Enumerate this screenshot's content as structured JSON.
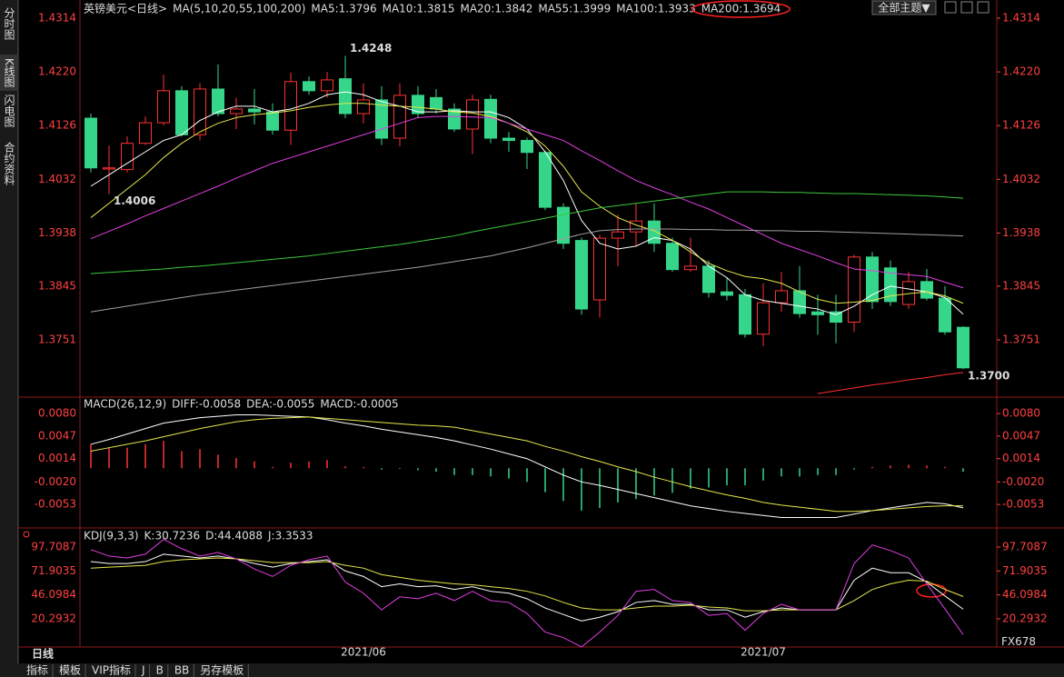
{
  "app": {
    "sidebar": [
      "分时图",
      "K线图",
      "闪电图",
      "合约资料"
    ],
    "theme_button": "全部主题▼",
    "period": "日线",
    "tabs": [
      "指标",
      "模板",
      "VIP指标",
      "J",
      "B",
      "BB",
      "另存模板"
    ],
    "watermark": "FX678"
  },
  "chart_data": [
    {
      "type": "candlestick",
      "title": "英镑美元<日线>",
      "indicator": "MA(5,10,20,55,100,200)",
      "categories": [
        null,
        null,
        null,
        null,
        null,
        null,
        null,
        null,
        null,
        null,
        null,
        null,
        null,
        null,
        null,
        "2021/06",
        null,
        null,
        null,
        null,
        null,
        null,
        null,
        null,
        null,
        null,
        null,
        null,
        null,
        null,
        null,
        null,
        null,
        null,
        null,
        null,
        null,
        "2021/07",
        null,
        null,
        null,
        null,
        null,
        null,
        null,
        null,
        null,
        null,
        null
      ],
      "up_color": "#ff3232",
      "down_color": "#36d68a",
      "open": [
        1.4139,
        1.405,
        1.4049,
        1.4095,
        1.4131,
        1.4187,
        1.411,
        1.419,
        1.4147,
        1.4155,
        1.415,
        1.4118,
        1.4203,
        1.4187,
        1.4208,
        1.4147,
        1.4171,
        1.4104,
        1.4179,
        1.4175,
        1.4155,
        1.412,
        1.4172,
        1.4104,
        1.41,
        1.4079,
        1.3983,
        1.3925,
        1.3821,
        1.3929,
        1.394,
        1.3959,
        1.392,
        1.3874,
        1.388,
        1.3835,
        1.383,
        1.3761,
        1.3816,
        1.3837,
        1.38,
        1.38,
        1.3782,
        1.3896,
        1.3877,
        1.3813,
        1.3853,
        1.3824,
        1.3773
      ],
      "high": [
        1.4147,
        1.4091,
        1.4107,
        1.4142,
        1.4215,
        1.4195,
        1.42,
        1.4233,
        1.4175,
        1.419,
        1.4165,
        1.4219,
        1.4212,
        1.422,
        1.4248,
        1.42,
        1.4195,
        1.42,
        1.4195,
        1.419,
        1.4165,
        1.418,
        1.418,
        1.4115,
        1.4105,
        1.4082,
        1.399,
        1.393,
        1.3935,
        1.397,
        1.399,
        1.399,
        1.393,
        1.393,
        1.389,
        1.386,
        1.384,
        1.385,
        1.387,
        1.388,
        1.383,
        1.383,
        1.39,
        1.3905,
        1.389,
        1.387,
        1.3875,
        1.3845,
        1.3775
      ],
      "low": [
        1.4044,
        1.4006,
        1.4044,
        1.4092,
        1.4126,
        1.4107,
        1.41,
        1.4142,
        1.412,
        1.4128,
        1.411,
        1.4092,
        1.418,
        1.4175,
        1.4139,
        1.413,
        1.4092,
        1.409,
        1.414,
        1.4147,
        1.4115,
        1.4076,
        1.4095,
        1.408,
        1.405,
        1.3978,
        1.391,
        1.3795,
        1.379,
        1.388,
        1.3915,
        1.3905,
        1.387,
        1.387,
        1.3825,
        1.382,
        1.3755,
        1.374,
        1.38,
        1.379,
        1.376,
        1.3745,
        1.3765,
        1.3805,
        1.381,
        1.3805,
        1.382,
        1.376,
        1.37
      ],
      "close": [
        1.4052,
        1.4052,
        1.4095,
        1.4131,
        1.4187,
        1.411,
        1.419,
        1.4147,
        1.4155,
        1.415,
        1.4118,
        1.4203,
        1.4187,
        1.4206,
        1.4147,
        1.4171,
        1.4104,
        1.4179,
        1.4147,
        1.4155,
        1.412,
        1.4171,
        1.4104,
        1.41,
        1.4079,
        1.3983,
        1.392,
        1.3805,
        1.3929,
        1.394,
        1.3959,
        1.392,
        1.3874,
        1.388,
        1.3834,
        1.3829,
        1.3761,
        1.3816,
        1.3837,
        1.3797,
        1.3795,
        1.3782,
        1.3896,
        1.3818,
        1.3818,
        1.3853,
        1.3824,
        1.3765,
        1.3702
      ],
      "series": [
        {
          "name": "MA5:1.3796",
          "color": "#ffffff",
          "values": [
            1.402,
            1.404,
            1.406,
            1.408,
            1.41,
            1.411,
            1.4135,
            1.415,
            1.416,
            1.416,
            1.415,
            1.4155,
            1.4165,
            1.418,
            1.4185,
            1.418,
            1.4168,
            1.416,
            1.415,
            1.415,
            1.4152,
            1.415,
            1.415,
            1.414,
            1.412,
            1.408,
            1.403,
            1.396,
            1.392,
            1.391,
            1.3915,
            1.393,
            1.3925,
            1.391,
            1.388,
            1.386,
            1.383,
            1.382,
            1.3815,
            1.381,
            1.3805,
            1.3795,
            1.381,
            1.383,
            1.3845,
            1.384,
            1.3835,
            1.3825,
            1.3796
          ]
        },
        {
          "name": "MA10:1.3815",
          "color": "#e6e64c",
          "values": [
            1.3965,
            1.399,
            1.4015,
            1.404,
            1.407,
            1.4095,
            1.4115,
            1.413,
            1.414,
            1.4145,
            1.4148,
            1.4152,
            1.4158,
            1.4162,
            1.4165,
            1.4165,
            1.4162,
            1.416,
            1.4158,
            1.4155,
            1.415,
            1.4148,
            1.4142,
            1.413,
            1.4115,
            1.409,
            1.4055,
            1.401,
            1.3985,
            1.3965,
            1.3952,
            1.3942,
            1.3925,
            1.3905,
            1.3885,
            1.3872,
            1.3862,
            1.3858,
            1.385,
            1.3835,
            1.3822,
            1.3815,
            1.3817,
            1.382,
            1.3828,
            1.3832,
            1.3835,
            1.3828,
            1.3815
          ]
        },
        {
          "name": "MA20:1.3842",
          "color": "#e040e0",
          "values": [
            1.3928,
            1.3941,
            1.3954,
            1.3968,
            1.3981,
            1.3994,
            1.4007,
            1.402,
            1.4034,
            1.4047,
            1.406,
            1.407,
            1.408,
            1.409,
            1.41,
            1.411,
            1.412,
            1.413,
            1.414,
            1.4142,
            1.4142,
            1.4141,
            1.414,
            1.413,
            1.412,
            1.411,
            1.41,
            1.4082,
            1.4065,
            1.4047,
            1.403,
            1.4017,
            1.4005,
            1.3992,
            1.398,
            1.3965,
            1.395,
            1.3935,
            1.392,
            1.3909,
            1.3898,
            1.3886,
            1.3875,
            1.3872,
            1.3868,
            1.3865,
            1.3862,
            1.3852,
            1.3842
          ]
        },
        {
          "name": "MA55:1.3999",
          "color": "#3cc83c",
          "values": [
            1.3867,
            1.3869,
            1.3871,
            1.3873,
            1.3875,
            1.3878,
            1.388,
            1.3883,
            1.3886,
            1.3889,
            1.3892,
            1.3895,
            1.3898,
            1.3902,
            1.3906,
            1.391,
            1.3914,
            1.3918,
            1.3923,
            1.3928,
            1.3933,
            1.394,
            1.3946,
            1.3952,
            1.3958,
            1.3964,
            1.397,
            1.3976,
            1.3982,
            1.3986,
            1.399,
            1.3994,
            1.3998,
            1.4002,
            1.4006,
            1.401,
            1.401,
            1.401,
            1.4009,
            1.4009,
            1.4008,
            1.4007,
            1.4007,
            1.4006,
            1.4005,
            1.4004,
            1.4003,
            1.4001,
            1.3999
          ]
        },
        {
          "name": "MA100:1.3933",
          "color": "#a0a0a0",
          "values": [
            1.38,
            1.3805,
            1.381,
            1.3815,
            1.382,
            1.3825,
            1.383,
            1.3834,
            1.3838,
            1.3842,
            1.3846,
            1.385,
            1.3854,
            1.3858,
            1.3862,
            1.3866,
            1.387,
            1.3874,
            1.3878,
            1.3883,
            1.3888,
            1.3893,
            1.3898,
            1.3905,
            1.3912,
            1.392,
            1.3928,
            1.3936,
            1.3942,
            1.3944,
            1.3945,
            1.3945,
            1.3945,
            1.3944,
            1.3944,
            1.3943,
            1.3943,
            1.3942,
            1.3942,
            1.3941,
            1.3941,
            1.394,
            1.3939,
            1.3938,
            1.3937,
            1.3936,
            1.3935,
            1.3934,
            1.3933
          ]
        },
        {
          "name": "MA200:1.3694",
          "color": "#ff3030",
          "values": [
            null,
            null,
            null,
            null,
            null,
            null,
            null,
            null,
            null,
            null,
            null,
            null,
            null,
            null,
            null,
            null,
            null,
            null,
            null,
            null,
            null,
            null,
            null,
            null,
            null,
            null,
            null,
            null,
            null,
            null,
            null,
            null,
            null,
            null,
            null,
            null,
            null,
            null,
            null,
            null,
            1.3657,
            1.3662,
            1.3667,
            1.3672,
            1.3676,
            1.3681,
            1.3685,
            1.369,
            1.3694
          ]
        }
      ],
      "annotations": [
        {
          "index": 14,
          "value": 1.4248,
          "label": "1.4248",
          "color": "#ff3232"
        },
        {
          "index": 1,
          "value": 1.4006,
          "label": "1.4006",
          "color": "#36d68a"
        },
        {
          "index": 48,
          "value": 1.37,
          "label": "1.3700",
          "color": "#36d68a"
        }
      ],
      "ylim": [
        1.3654,
        1.4314
      ],
      "yticks": [
        1.4314,
        {
          "value": 1.422,
          "label": "1.4220"
        },
        1.4126,
        1.4032,
        1.3938,
        1.3845,
        1.3751
      ]
    },
    {
      "type": "combo",
      "title": "MACD(26,12,9)",
      "series": [
        {
          "name": "DIFF:-0.0058",
          "type": "line",
          "color": "#ffffff",
          "values": [
            0.0035,
            0.0042,
            0.005,
            0.0058,
            0.0066,
            0.007,
            0.0074,
            0.0076,
            0.0078,
            0.0078,
            0.0077,
            0.0076,
            0.0075,
            0.0071,
            0.0066,
            0.0062,
            0.0057,
            0.0053,
            0.0049,
            0.0045,
            0.004,
            0.0034,
            0.0028,
            0.0021,
            0.0014,
            0.0002,
            -0.001,
            -0.002,
            -0.0025,
            -0.0031,
            -0.0037,
            -0.0043,
            -0.0049,
            -0.0055,
            -0.0059,
            -0.0063,
            -0.0066,
            -0.0069,
            -0.0072,
            -0.0072,
            -0.0072,
            -0.0072,
            -0.0067,
            -0.0062,
            -0.0058,
            -0.0054,
            -0.005,
            -0.0052,
            -0.0058
          ]
        },
        {
          "name": "DEA:-0.0055",
          "type": "line",
          "color": "#e6e64c",
          "values": [
            0.0025,
            0.003,
            0.0035,
            0.004,
            0.0046,
            0.0052,
            0.0058,
            0.0063,
            0.0068,
            0.0071,
            0.0073,
            0.0074,
            0.0075,
            0.0073,
            0.0071,
            0.0069,
            0.0067,
            0.0065,
            0.0063,
            0.0062,
            0.006,
            0.0055,
            0.005,
            0.0045,
            0.004,
            0.0032,
            0.0025,
            0.0017,
            0.001,
            0.0002,
            -0.0005,
            -0.0013,
            -0.002,
            -0.0027,
            -0.0033,
            -0.0039,
            -0.0044,
            -0.005,
            -0.0054,
            -0.0057,
            -0.006,
            -0.0063,
            -0.0063,
            -0.0062,
            -0.006,
            -0.0058,
            -0.0056,
            -0.0055,
            -0.0055
          ]
        },
        {
          "name": "MACD:-0.0005",
          "type": "bar",
          "color": "#ff3232",
          "negative_color": "#36d68a",
          "values": [
            0.0035,
            0.003,
            0.003,
            0.0035,
            0.004,
            0.0025,
            0.0028,
            0.002,
            0.0015,
            0.001,
            0.0002,
            0.0008,
            0.001,
            0.0012,
            0.0003,
            0.0002,
            -0.0002,
            -0.0001,
            -0.0003,
            -0.0005,
            -0.001,
            -0.001,
            -0.0012,
            -0.0015,
            -0.002,
            -0.0035,
            -0.0048,
            -0.0062,
            -0.0058,
            -0.005,
            -0.0045,
            -0.004,
            -0.0036,
            -0.003,
            -0.0028,
            -0.0025,
            -0.0025,
            -0.0018,
            -0.0012,
            -0.0012,
            -0.001,
            -0.001,
            -0.0002,
            0.0002,
            0.0004,
            0.0005,
            0.0004,
            0.0002,
            -0.0005
          ]
        }
      ],
      "ylim": [
        -0.0086,
        0.01
      ],
      "yticks": [
        {
          "value": 0.008,
          "label": "0.0080"
        },
        0.0047,
        0.0014,
        {
          "value": -0.002,
          "label": "-0.0020"
        },
        -0.0053
      ]
    },
    {
      "type": "combo",
      "title": "KDJ(9,3,3)",
      "series": [
        {
          "name": "K:30.7236",
          "type": "line",
          "color": "#ffffff",
          "values": [
            82,
            80,
            80,
            82,
            90,
            88,
            86,
            88,
            85,
            80,
            76,
            80,
            82,
            84,
            72,
            66,
            55,
            58,
            55,
            56,
            52,
            55,
            50,
            48,
            42,
            32,
            25,
            18,
            22,
            28,
            38,
            40,
            36,
            36,
            30,
            30,
            22,
            28,
            32,
            30,
            30,
            30,
            62,
            75,
            70,
            70,
            60,
            45,
            30.7236
          ]
        },
        {
          "name": "D:44.4088",
          "type": "line",
          "color": "#e6e64c",
          "values": [
            75,
            76,
            77,
            78,
            82,
            84,
            85,
            86,
            85,
            83,
            81,
            81,
            81,
            82,
            78,
            75,
            68,
            65,
            62,
            60,
            58,
            57,
            55,
            53,
            50,
            45,
            38,
            32,
            30,
            30,
            32,
            34,
            34,
            35,
            33,
            32,
            29,
            29,
            30,
            30,
            30,
            30,
            40,
            52,
            58,
            62,
            61,
            52,
            44.4088
          ]
        },
        {
          "name": "J:3.3533",
          "type": "line",
          "color": "#e040e0",
          "values": [
            95,
            88,
            86,
            90,
            106,
            96,
            88,
            92,
            85,
            74,
            66,
            78,
            84,
            88,
            60,
            48,
            30,
            44,
            42,
            48,
            40,
            50,
            40,
            38,
            26,
            6,
            0,
            -10,
            6,
            24,
            50,
            52,
            40,
            38,
            24,
            26,
            8,
            26,
            36,
            30,
            30,
            30,
            80,
            100,
            94,
            86,
            58,
            31,
            3.3533
          ]
        }
      ],
      "ylim": [
        -10.1,
        114.4
      ],
      "yticks": [
        97.7087,
        71.9035,
        46.0984,
        20.2932
      ]
    }
  ]
}
